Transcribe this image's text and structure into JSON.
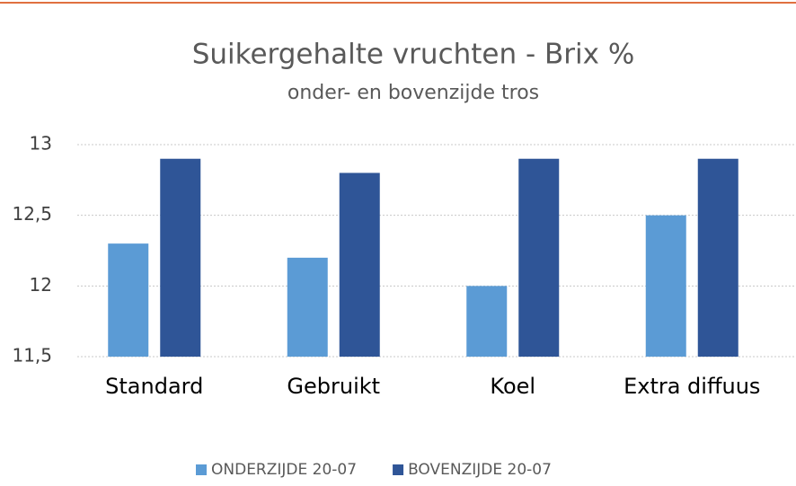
{
  "chart_data": {
    "type": "bar",
    "title": "Suikergehalte vruchten - Brix %",
    "subtitle": "onder- en bovenzijde tros",
    "categories": [
      "Standard",
      "Gebruikt",
      "Koel",
      "Extra diffuus"
    ],
    "series": [
      {
        "name": "ONDERZIJDE 20-07",
        "color": "#5b9bd5",
        "values": [
          12.3,
          12.2,
          12.0,
          12.5
        ]
      },
      {
        "name": "BOVENZIJDE 20-07",
        "color": "#2f5597",
        "values": [
          12.9,
          12.8,
          12.9,
          12.9
        ]
      }
    ],
    "ylim": [
      11.5,
      13
    ],
    "yticks": [
      {
        "value": 11.5,
        "label": "11,5"
      },
      12,
      {
        "value": 12.5,
        "label": "12,5"
      },
      13
    ],
    "grid": true,
    "legend": "bottom"
  }
}
